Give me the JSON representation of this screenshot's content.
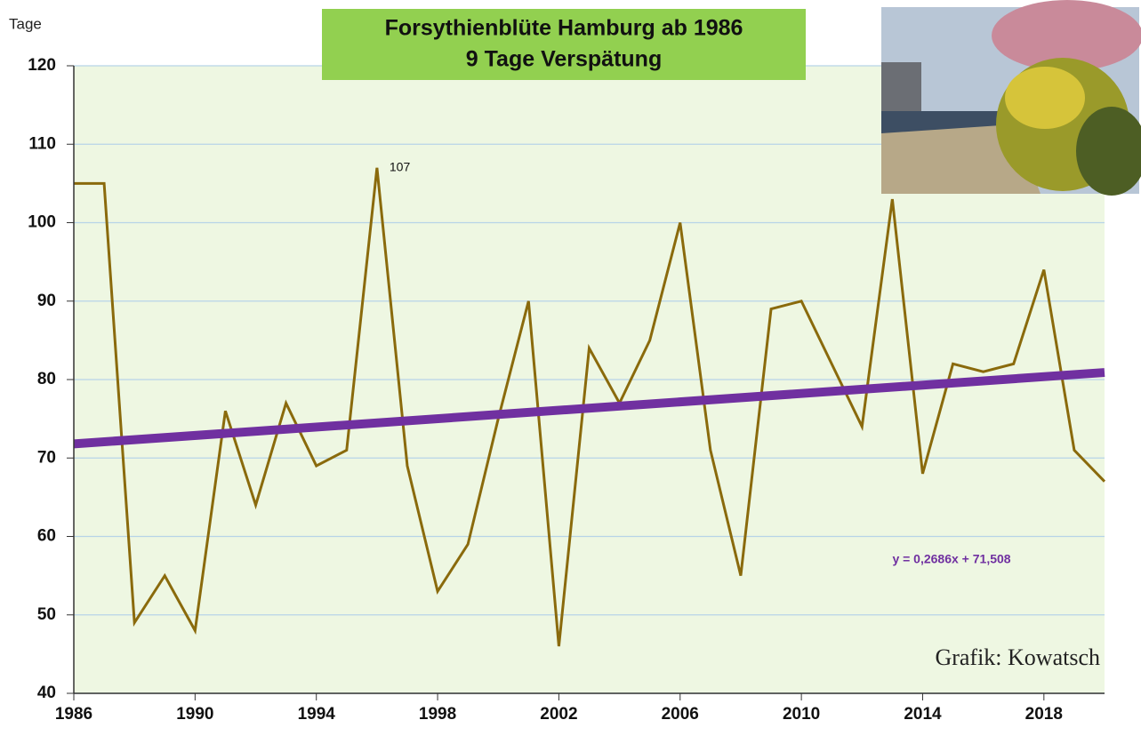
{
  "chart_data": {
    "type": "line",
    "title": "Forsythienblüte Hamburg ab 1986",
    "subtitle": "9 Tage Verspätung",
    "y_label": "Tage",
    "credit": "Grafik: Kowatsch",
    "x": [
      1986,
      1987,
      1988,
      1989,
      1990,
      1991,
      1992,
      1993,
      1994,
      1995,
      1996,
      1997,
      1998,
      1999,
      2000,
      2001,
      2002,
      2003,
      2004,
      2005,
      2006,
      2007,
      2008,
      2009,
      2010,
      2011,
      2012,
      2013,
      2014,
      2015,
      2016,
      2017,
      2018,
      2019,
      2020
    ],
    "series": [
      {
        "color": "#8a6a0c",
        "values": [
          105,
          105,
          49,
          55,
          48,
          76,
          64,
          77,
          69,
          71,
          107,
          69,
          53,
          59,
          75,
          90,
          46,
          84,
          77,
          85,
          100,
          71,
          55,
          89,
          90,
          82,
          74,
          103,
          68,
          82,
          81,
          82,
          94,
          71,
          67
        ],
        "value_labels": [
          null,
          null,
          null,
          null,
          null,
          null,
          null,
          null,
          null,
          null,
          "107",
          null,
          null,
          null,
          null,
          null,
          null,
          null,
          null,
          null,
          null,
          null,
          null,
          null,
          null,
          null,
          null,
          null,
          null,
          null,
          null,
          null,
          null,
          null,
          null
        ]
      }
    ],
    "trend": {
      "label": "y = 0,2686x + 71,508",
      "color": "#7030a0",
      "x": [
        1986,
        2020
      ],
      "values": [
        71.8,
        80.9
      ]
    },
    "xlim": [
      1986,
      2020
    ],
    "xticks": [
      1986,
      1990,
      1994,
      1998,
      2002,
      2006,
      2010,
      2014,
      2018
    ],
    "ylim": [
      40,
      120
    ],
    "yticks": [
      40,
      50,
      60,
      70,
      80,
      90,
      100,
      110,
      120
    ],
    "grid": true
  }
}
